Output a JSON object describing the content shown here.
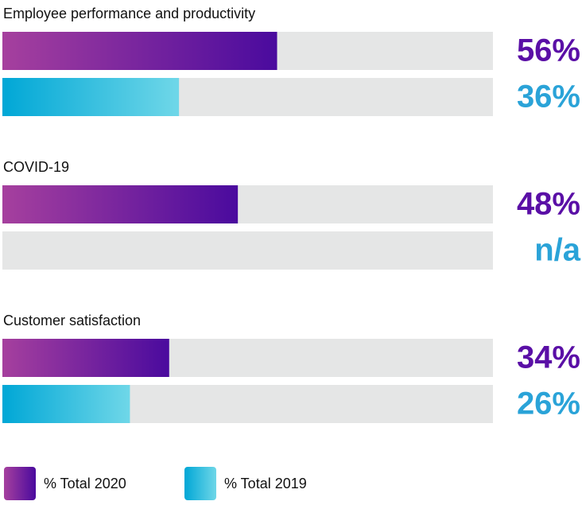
{
  "chart_data": {
    "type": "bar",
    "orientation": "horizontal",
    "categories": [
      "Employee performance and productivity",
      "COVID-19",
      "Customer satisfaction"
    ],
    "xlim": [
      0,
      100
    ],
    "series": [
      {
        "name": "% Total 2020",
        "color": "#5a0fa6",
        "gradient": [
          "#a6409e",
          "#4a0a9e"
        ],
        "values": [
          56,
          48,
          34
        ],
        "value_labels": [
          "56%",
          "48%",
          "34%"
        ]
      },
      {
        "name": "% Total 2019",
        "color": "#2aa3d8",
        "gradient": [
          "#00a7d6",
          "#6fd7e8"
        ],
        "values": [
          36,
          null,
          26
        ],
        "value_labels": [
          "36%",
          "n/a",
          "26%"
        ]
      }
    ]
  }
}
